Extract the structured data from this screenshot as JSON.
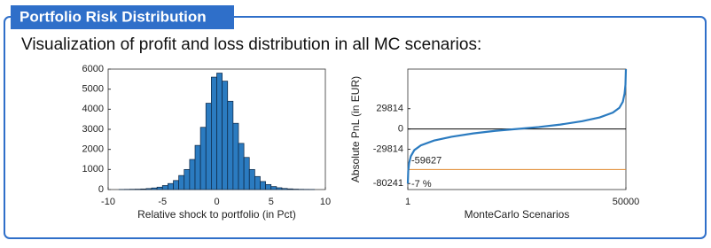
{
  "header": {
    "title": "Portfolio Risk Distribution"
  },
  "subtitle": "Visualization of profit and loss distribution in all MC scenarios:",
  "chart_data": [
    {
      "type": "histogram",
      "xlabel": "Relative shock to portfolio (in Pct)",
      "bins": [
        -9,
        -8.5,
        -8,
        -7.5,
        -7,
        -6.5,
        -6,
        -5.5,
        -5,
        -4.5,
        -4,
        -3.5,
        -3,
        -2.5,
        -2,
        -1.5,
        -1,
        -0.5,
        0,
        0.5,
        1,
        1.5,
        2,
        2.5,
        3,
        3.5,
        4,
        4.5,
        5,
        5.5,
        6,
        6.5,
        7,
        7.5,
        8,
        8.5,
        9
      ],
      "values": [
        5,
        10,
        15,
        20,
        30,
        50,
        80,
        120,
        200,
        300,
        450,
        700,
        1000,
        1500,
        2200,
        3100,
        4300,
        5600,
        5800,
        5400,
        4400,
        3300,
        2300,
        1600,
        1000,
        650,
        400,
        250,
        150,
        90,
        55,
        35,
        20,
        12,
        8,
        5
      ],
      "color": "#2b7bc0",
      "xlim": [
        -10,
        10
      ],
      "xticks": [
        -10,
        -5,
        0,
        5,
        10
      ],
      "ylim": [
        0,
        6000
      ],
      "yticks": [
        0,
        1000,
        2000,
        3000,
        4000,
        5000,
        6000
      ]
    },
    {
      "type": "line",
      "xlabel": "MonteCarlo Scenarios",
      "ylabel": "Absolute PnL (in EUR)",
      "x": [
        1,
        100,
        300,
        700,
        1500,
        3000,
        6000,
        10000,
        15000,
        20000,
        25000,
        30000,
        35000,
        40000,
        44000,
        47000,
        48500,
        49300,
        49700,
        49900,
        50000
      ],
      "values": [
        -80241,
        -62000,
        -50000,
        -40000,
        -31000,
        -24000,
        -17000,
        -11500,
        -6500,
        -2800,
        0,
        2800,
        6500,
        11500,
        17000,
        24000,
        31000,
        40000,
        52000,
        65000,
        88000
      ],
      "color": "#2b7bc0",
      "xlim": [
        1,
        50000
      ],
      "xticks": [
        1,
        50000
      ],
      "ylim": [
        -89000,
        88000
      ],
      "yticks": [
        -80241,
        -29814,
        0,
        29814
      ],
      "hlines": [
        {
          "value": 0,
          "color": "#000000"
        },
        {
          "value": -59627,
          "color": "#e0892f",
          "label": "-59627"
        }
      ],
      "annotations": [
        "-7 %"
      ]
    }
  ]
}
